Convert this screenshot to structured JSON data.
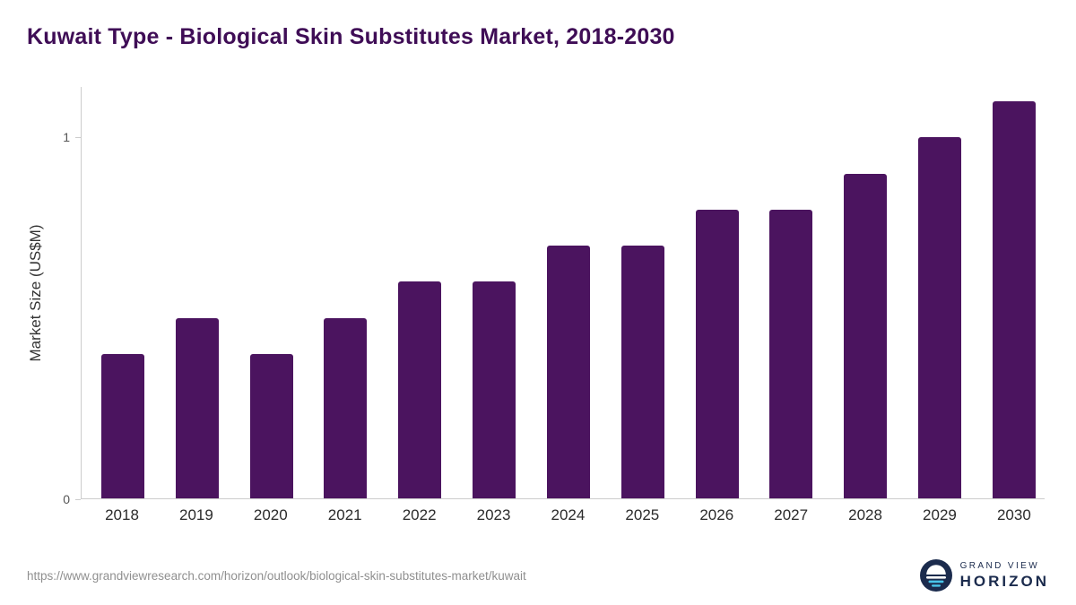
{
  "title": "Kuwait Type - Biological Skin Substitutes Market, 2018-2030",
  "ylabel": "Market Size (US$M)",
  "footer": {
    "source_url": "https://www.grandviewresearch.com/horizon/outlook/biological-skin-substitutes-market/kuwait"
  },
  "logo": {
    "line1": "GRAND VIEW",
    "line2": "HORIZON"
  },
  "colors": {
    "bar": "#4B145F",
    "title": "#3F0D56",
    "axis": "#cccccc",
    "y_tick_label": "#555555",
    "x_label": "#2b2b2b",
    "footer_text": "#8f8f8f",
    "logo_navy": "#1B2B4D",
    "logo_cyan": "#49C5EA"
  },
  "chart_data": {
    "type": "bar",
    "title": "Kuwait Type - Biological Skin Substitutes Market, 2018-2030",
    "categories": [
      "2018",
      "2019",
      "2020",
      "2021",
      "2022",
      "2023",
      "2024",
      "2025",
      "2026",
      "2027",
      "2028",
      "2029",
      "2030"
    ],
    "values": [
      0.4,
      0.5,
      0.4,
      0.5,
      0.6,
      0.6,
      0.7,
      0.7,
      0.8,
      0.8,
      0.9,
      1.0,
      1.1
    ],
    "xlabel": "",
    "ylabel": "Market Size (US$M)",
    "ylim": [
      0,
      1.14
    ],
    "yticks": [
      0,
      1
    ],
    "grid": false,
    "legend": false,
    "bar_color": "#4B145F"
  }
}
